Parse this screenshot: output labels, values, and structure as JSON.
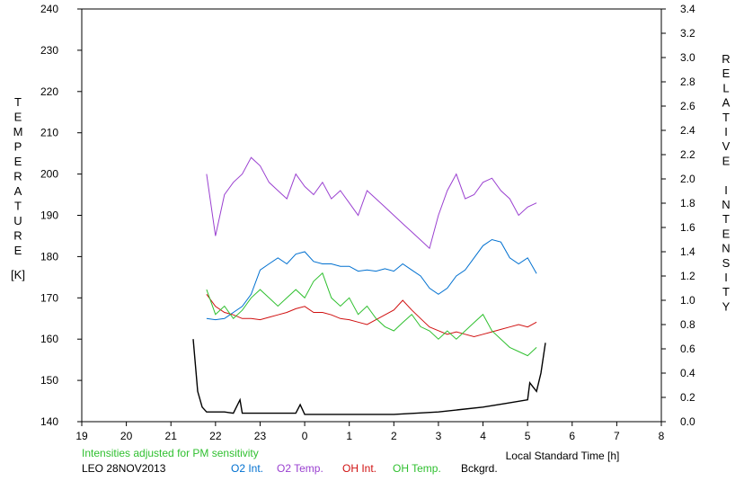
{
  "chart_data": {
    "type": "line",
    "x_label": "Local Standard Time [h]",
    "x_ticks": [
      "19",
      "20",
      "21",
      "22",
      "23",
      "0",
      "1",
      "2",
      "3",
      "4",
      "5",
      "6",
      "7",
      "8"
    ],
    "y_left_label": "TEMPERATURE",
    "y_left_unit": "[K]",
    "y_left_ticks": [
      140,
      150,
      160,
      170,
      180,
      190,
      200,
      210,
      220,
      230,
      240
    ],
    "y_left_range": [
      140,
      240
    ],
    "y_right_label": "RELATIVE INTENSITY",
    "y_right_ticks": [
      "0.0",
      "0.2",
      "0.4",
      "0.6",
      "0.8",
      "1.0",
      "1.2",
      "1.4",
      "1.6",
      "1.8",
      "2.0",
      "2.2",
      "2.4",
      "2.6",
      "2.8",
      "3.0",
      "3.2",
      "3.4"
    ],
    "y_right_range": [
      0.0,
      3.4
    ],
    "x_range_hours": [
      19,
      32
    ],
    "note": "Intensities adjusted for PM sensitivity",
    "station_date": "LEO 28NOV2013",
    "series": [
      {
        "name": "O2 Int.",
        "color": "#0070d0",
        "axis": "right",
        "x": [
          21.8,
          22.0,
          22.2,
          22.4,
          22.6,
          22.8,
          23.0,
          23.2,
          23.4,
          23.6,
          23.8,
          24.0,
          24.2,
          24.4,
          24.6,
          24.8,
          25.0,
          25.2,
          25.4,
          25.6,
          25.8,
          26.0,
          26.2,
          26.4,
          26.6,
          26.8,
          27.0,
          27.2,
          27.4,
          27.6,
          27.8,
          28.0,
          28.2,
          28.4,
          28.6,
          28.8,
          29.0,
          29.2
        ],
        "y": [
          0.85,
          0.84,
          0.85,
          0.9,
          0.95,
          1.05,
          1.25,
          1.3,
          1.35,
          1.3,
          1.38,
          1.4,
          1.32,
          1.3,
          1.3,
          1.28,
          1.28,
          1.24,
          1.25,
          1.24,
          1.26,
          1.24,
          1.3,
          1.25,
          1.2,
          1.1,
          1.05,
          1.1,
          1.2,
          1.25,
          1.35,
          1.45,
          1.5,
          1.48,
          1.35,
          1.3,
          1.35,
          1.22
        ]
      },
      {
        "name": "O2 Temp.",
        "color": "#9a40d0",
        "axis": "left",
        "x": [
          21.8,
          22.0,
          22.2,
          22.4,
          22.6,
          22.8,
          23.0,
          23.2,
          23.4,
          23.6,
          23.8,
          24.0,
          24.2,
          24.4,
          24.6,
          24.8,
          25.0,
          25.2,
          25.4,
          25.6,
          25.8,
          26.0,
          26.2,
          26.4,
          26.6,
          26.8,
          27.0,
          27.2,
          27.4,
          27.6,
          27.8,
          28.0,
          28.2,
          28.4,
          28.6,
          28.8,
          29.0,
          29.2
        ],
        "y": [
          200,
          185,
          195,
          198,
          200,
          204,
          202,
          198,
          196,
          194,
          200,
          197,
          195,
          198,
          194,
          196,
          193,
          190,
          196,
          194,
          192,
          190,
          188,
          186,
          184,
          182,
          190,
          196,
          200,
          194,
          195,
          198,
          199,
          196,
          194,
          190,
          192,
          193
        ]
      },
      {
        "name": "OH Int.",
        "color": "#d01010",
        "axis": "right",
        "x": [
          21.8,
          22.0,
          22.2,
          22.4,
          22.6,
          22.8,
          23.0,
          23.2,
          23.4,
          23.6,
          23.8,
          24.0,
          24.2,
          24.4,
          24.6,
          24.8,
          25.0,
          25.2,
          25.4,
          25.6,
          25.8,
          26.0,
          26.2,
          26.4,
          26.6,
          26.8,
          27.0,
          27.2,
          27.4,
          27.6,
          27.8,
          28.0,
          28.2,
          28.4,
          28.6,
          28.8,
          29.0,
          29.2
        ],
        "y": [
          1.05,
          0.95,
          0.9,
          0.88,
          0.85,
          0.85,
          0.84,
          0.86,
          0.88,
          0.9,
          0.93,
          0.95,
          0.9,
          0.9,
          0.88,
          0.85,
          0.84,
          0.82,
          0.8,
          0.84,
          0.88,
          0.92,
          1.0,
          0.92,
          0.85,
          0.78,
          0.75,
          0.72,
          0.74,
          0.72,
          0.7,
          0.72,
          0.74,
          0.76,
          0.78,
          0.8,
          0.78,
          0.82
        ]
      },
      {
        "name": "OH Temp.",
        "color": "#30c030",
        "axis": "left",
        "x": [
          21.8,
          22.0,
          22.2,
          22.4,
          22.6,
          22.8,
          23.0,
          23.2,
          23.4,
          23.6,
          23.8,
          24.0,
          24.2,
          24.4,
          24.6,
          24.8,
          25.0,
          25.2,
          25.4,
          25.6,
          25.8,
          26.0,
          26.2,
          26.4,
          26.6,
          26.8,
          27.0,
          27.2,
          27.4,
          27.6,
          27.8,
          28.0,
          28.2,
          28.4,
          28.6,
          28.8,
          29.0,
          29.2
        ],
        "y": [
          172,
          166,
          168,
          165,
          167,
          170,
          172,
          170,
          168,
          170,
          172,
          170,
          174,
          176,
          170,
          168,
          170,
          166,
          168,
          165,
          163,
          162,
          164,
          166,
          163,
          162,
          160,
          162,
          160,
          162,
          164,
          166,
          162,
          160,
          158,
          157,
          156,
          158
        ]
      },
      {
        "name": "Bckgrd.",
        "color": "#000000",
        "axis": "right",
        "x": [
          21.5,
          21.6,
          21.7,
          21.8,
          22.0,
          22.2,
          22.4,
          22.55,
          22.6,
          22.8,
          23.0,
          23.5,
          23.8,
          23.9,
          24.0,
          24.5,
          25.0,
          25.5,
          26.0,
          26.5,
          27.0,
          27.5,
          28.0,
          28.5,
          29.0,
          29.05,
          29.2,
          29.3,
          29.4
        ],
        "y": [
          0.68,
          0.25,
          0.12,
          0.08,
          0.08,
          0.08,
          0.07,
          0.18,
          0.07,
          0.07,
          0.07,
          0.07,
          0.07,
          0.14,
          0.06,
          0.06,
          0.06,
          0.06,
          0.06,
          0.07,
          0.08,
          0.1,
          0.12,
          0.15,
          0.18,
          0.32,
          0.25,
          0.4,
          0.65
        ]
      }
    ]
  }
}
